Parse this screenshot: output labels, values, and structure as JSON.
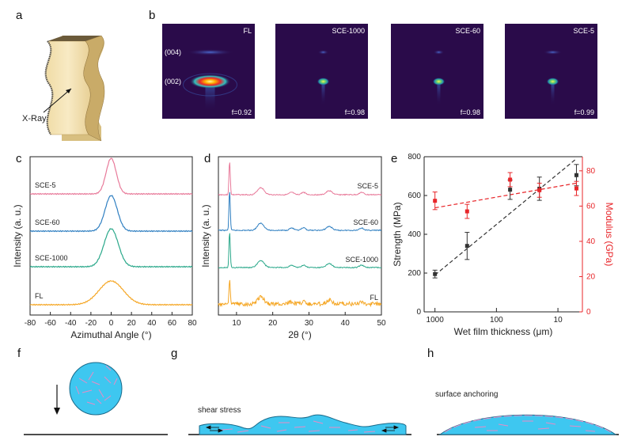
{
  "panels": {
    "a": "a",
    "b": "b",
    "c": "c",
    "d": "d",
    "e": "e",
    "f": "f",
    "g": "g",
    "h": "h"
  },
  "panel_a": {
    "xray_label": "X-Ray"
  },
  "panel_b": {
    "images": [
      {
        "name": "FL",
        "f": "f=0.92",
        "peaks": [
          "(004)",
          "(002)"
        ]
      },
      {
        "name": "SCE-1000",
        "f": "f=0.98"
      },
      {
        "name": "SCE-60",
        "f": "f=0.98"
      },
      {
        "name": "SCE-5",
        "f": "f=0.99"
      }
    ]
  },
  "panel_g": {
    "label": "shear stress"
  },
  "panel_h": {
    "label": "surface anchoring"
  },
  "colors": {
    "pink": "#e87a9a",
    "blue": "#2f7fc1",
    "green": "#2aa88a",
    "orange": "#f5a623",
    "black": "#333333",
    "red": "#e8262a",
    "droplet": "#3ec7f0",
    "fiber": "#e98bc6"
  },
  "chart_data": [
    {
      "id": "c",
      "type": "line",
      "xlabel": "Azimuthal Angle (°)",
      "ylabel": "Intensity (a. u.)",
      "xlim": [
        -80,
        80
      ],
      "xticks": [
        "-80",
        "-60",
        "-40",
        "-20",
        "0",
        "20",
        "40",
        "60",
        "80"
      ],
      "series": [
        {
          "name": "SCE-5",
          "peak_center": 0,
          "width": 5,
          "color": "#e87a9a"
        },
        {
          "name": "SCE-60",
          "peak_center": 0,
          "width": 6,
          "color": "#2f7fc1"
        },
        {
          "name": "SCE-1000",
          "peak_center": 0,
          "width": 7,
          "color": "#2aa88a"
        },
        {
          "name": "FL",
          "peak_center": 0,
          "width": 12,
          "color": "#f5a623"
        }
      ]
    },
    {
      "id": "d",
      "type": "line",
      "xlabel": "2θ (°)",
      "ylabel": "Intensity (a. u.)",
      "xlim": [
        5,
        50
      ],
      "xticks": [
        "10",
        "20",
        "30",
        "40",
        "50"
      ],
      "series": [
        {
          "name": "SCE-5",
          "color": "#e87a9a"
        },
        {
          "name": "SCE-60",
          "color": "#2f7fc1"
        },
        {
          "name": "SCE-1000",
          "color": "#2aa88a"
        },
        {
          "name": "FL",
          "color": "#f5a623"
        }
      ]
    },
    {
      "id": "e",
      "type": "scatter",
      "xlabel": "Wet film thickness (μm)",
      "ylabel": "Strength (MPa)",
      "y2label": "Modulus (GPa)",
      "xscale": "log-reversed",
      "xticks": [
        "1000",
        "100",
        "10"
      ],
      "ylim": [
        0,
        800
      ],
      "yticks": [
        "0",
        "200",
        "400",
        "600",
        "800"
      ],
      "y2lim": [
        0,
        88
      ],
      "y2ticks": [
        "0",
        "20",
        "40",
        "60",
        "80"
      ],
      "x": [
        1000,
        300,
        60,
        20,
        5
      ],
      "strength": {
        "values": [
          195,
          340,
          630,
          635,
          705
        ],
        "err": [
          20,
          70,
          50,
          60,
          55
        ],
        "color": "#333333"
      },
      "modulus": {
        "values": [
          63,
          57,
          75,
          69,
          70
        ],
        "err": [
          5,
          4,
          4,
          4,
          4
        ],
        "color": "#e8262a"
      }
    }
  ]
}
